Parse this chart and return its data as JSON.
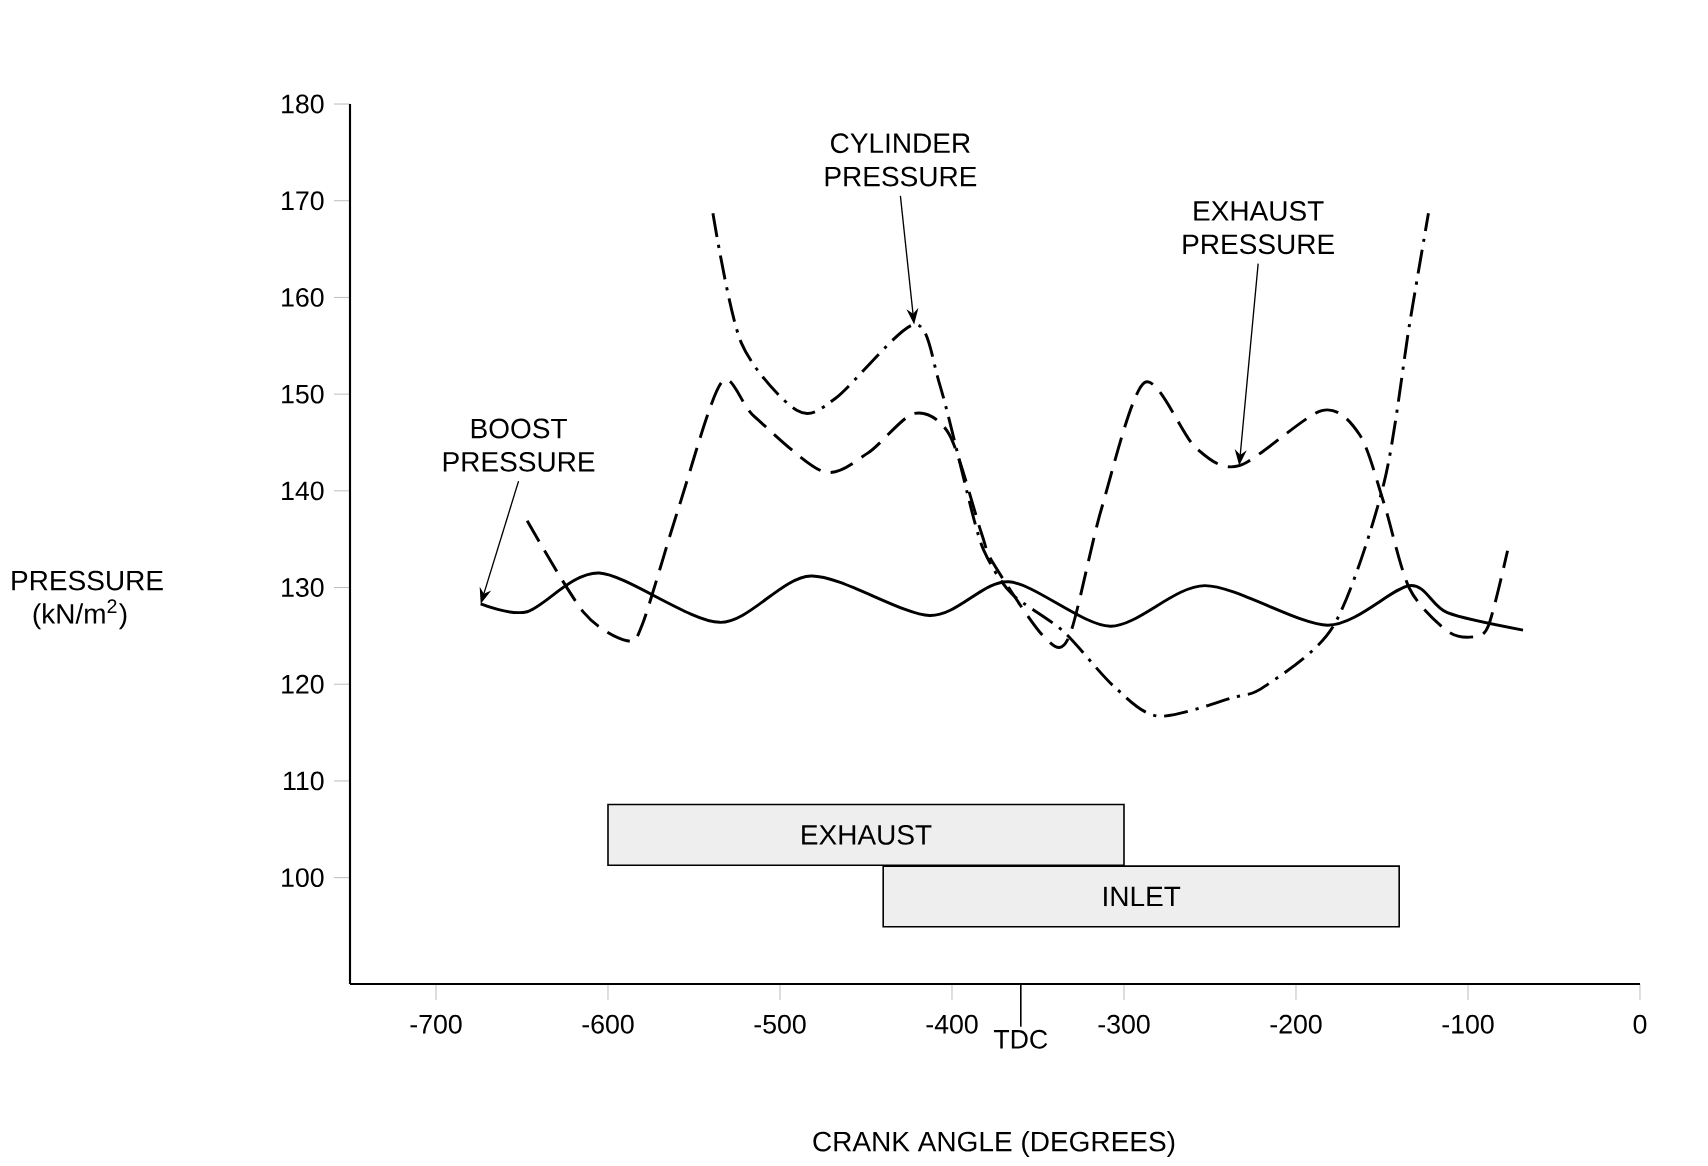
{
  "chart_data": {
    "type": "line",
    "xlabel": "CRANK ANGLE (DEGREES)",
    "ylabel": "PRESSURE (kN/m$^{2}$)",
    "xlim": [
      -750,
      0
    ],
    "xticks": [
      -700,
      -600,
      -500,
      -400,
      -300,
      -200,
      -100,
      0
    ],
    "ref_lines": [
      {
        "axis": "x",
        "value": -360,
        "label": "TDC"
      }
    ],
    "ylim": [
      89,
      180
    ],
    "yticks": [
      100,
      110,
      120,
      130,
      140,
      150,
      160,
      170,
      180
    ],
    "grid": false,
    "legend": false,
    "series": [
      {
        "name": "BOOST PRESSURE",
        "color": "#000000",
        "line_style": "solid",
        "x": [
          -674,
          -647,
          -605,
          -535,
          -482,
          -413,
          -367,
          -308,
          -253,
          -181.5,
          -134,
          -112,
          -68
        ],
        "values": [
          128.3,
          127.5,
          131.5,
          126.4,
          131.2,
          127.1,
          130.6,
          126,
          130.2,
          126.1,
          130.2,
          127.4,
          125.6
        ]
      },
      {
        "name": "CYLINDER PRESSURE",
        "color": "#000000",
        "line_style": "dashdot",
        "x": [
          -539,
          -522.5,
          -490,
          -467.5,
          -422,
          -407,
          -387,
          -379.5,
          -365,
          -335.5,
          -306,
          -280,
          -237,
          -218,
          -178,
          -149,
          -134,
          -123
        ],
        "values": [
          168.7,
          155.3,
          148.3,
          149.6,
          157.2,
          150.9,
          136.9,
          133.1,
          129.3,
          125.5,
          119.8,
          116.7,
          118.6,
          119.8,
          126.1,
          140.7,
          157.2,
          168.7
        ]
      },
      {
        "name": "EXHAUST PRESSURE",
        "color": "#000000",
        "line_style": "dashed",
        "x": [
          -647,
          -614,
          -589,
          -580,
          -559,
          -534,
          -515,
          -475,
          -449,
          -422,
          -401.5,
          -383,
          -376,
          -346.5,
          -332,
          -313,
          -288,
          -258.5,
          -233,
          -185,
          -163,
          -149,
          -134,
          -112,
          -97,
          -88,
          -77
        ],
        "values": [
          136.9,
          127.4,
          124.5,
          126.2,
          138.2,
          151.2,
          147.7,
          142,
          143.9,
          148,
          145.8,
          135.7,
          132.5,
          124.9,
          124.9,
          138.2,
          151.2,
          144.5,
          142.6,
          148.3,
          145.8,
          138.8,
          129.9,
          125.5,
          124.9,
          126.1,
          133.8
        ]
      }
    ],
    "bands": [
      {
        "axis": "x",
        "from": -600,
        "to": -300,
        "label": "EXHAUST",
        "color": "#eeeeee"
      },
      {
        "axis": "x",
        "from": -440,
        "to": -140,
        "label": "INLET",
        "color": "#eeeeee"
      }
    ]
  }
}
